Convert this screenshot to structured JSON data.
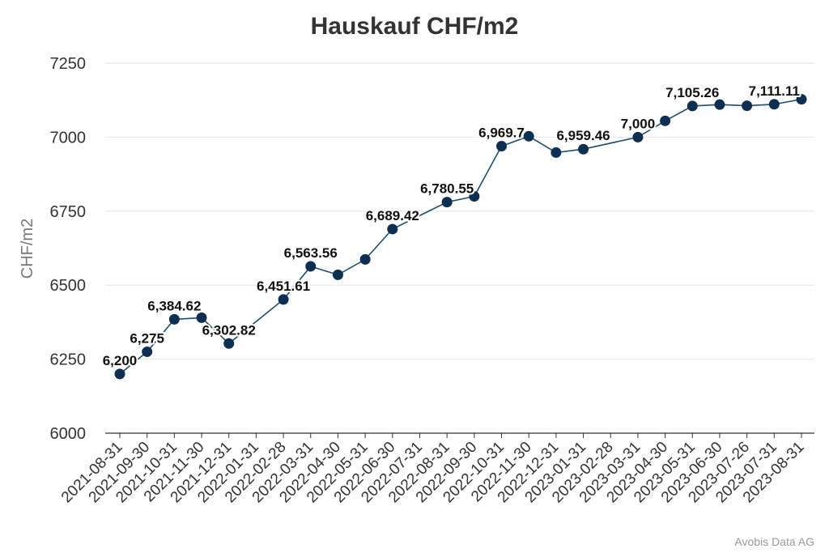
{
  "chart_data": {
    "type": "line",
    "title": "Hauskauf CHF/m2",
    "xlabel": "",
    "ylabel": "CHF/m2",
    "ylim": [
      6000,
      7250
    ],
    "yticks": [
      6000,
      6250,
      6500,
      6750,
      7000,
      7250
    ],
    "grid": true,
    "legend": "none",
    "line_color": "#1f4e6e",
    "marker_color": "#0d2f52",
    "categories": [
      "2021-08-31",
      "2021-09-30",
      "2021-10-31",
      "2021-11-30",
      "2021-12-31",
      "2022-01-31",
      "2022-02-28",
      "2022-03-31",
      "2022-04-30",
      "2022-05-31",
      "2022-06-30",
      "2022-07-31",
      "2022-08-31",
      "2022-09-30",
      "2022-10-31",
      "2022-11-30",
      "2022-12-31",
      "2023-01-31",
      "2023-02-28",
      "2023-03-31",
      "2023-04-30",
      "2023-05-31",
      "2023-06-30",
      "2023-07-26",
      "2023-07-31",
      "2023-08-31"
    ],
    "series": [
      {
        "values": [
          6200,
          6275,
          6384.62,
          6390,
          6302.82,
          null,
          6451.61,
          6563.56,
          6535,
          6587,
          6689.42,
          null,
          6780.55,
          6800,
          6969.7,
          7003,
          6948,
          6959.46,
          null,
          7000,
          7055,
          7105.26,
          7110,
          7106,
          7111.11,
          7128
        ],
        "data_labels": [
          "6,200",
          "6,275",
          "6,384.62",
          "",
          "6,302.82",
          "",
          "6,451.61",
          "6,563.56",
          "",
          "",
          "6,689.42",
          "",
          "6,780.55",
          "",
          "6,969.7",
          "",
          "",
          "6,959.46",
          "",
          "7,000",
          "",
          "7,105.26",
          "",
          "",
          "7,111.11",
          ""
        ]
      }
    ]
  },
  "credit": "Avobis Data AG"
}
